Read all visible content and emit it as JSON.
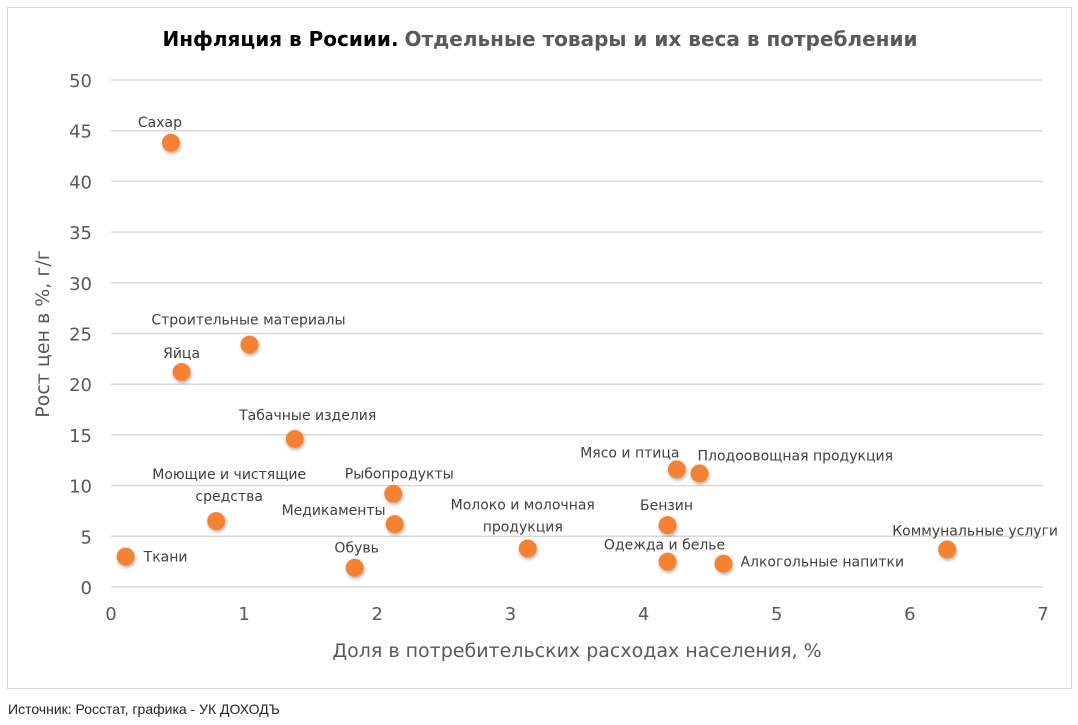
{
  "chart_data": {
    "type": "scatter",
    "title_bold": "Инфляция в Росиии.",
    "title_rest": "Отдельные товары и их веса в потреблении",
    "xlabel": "Доля в потребительских расходах населения, %",
    "ylabel": "Рост цен в %, г/г",
    "xlim": [
      0,
      7
    ],
    "ylim": [
      0,
      50
    ],
    "xticks": [
      "0",
      "1",
      "2",
      "3",
      "4",
      "5",
      "6",
      "7"
    ],
    "yticks": [
      "0",
      "5",
      "10",
      "15",
      "20",
      "25",
      "30",
      "35",
      "40",
      "45",
      "50"
    ],
    "grid": "horizontal",
    "marker_color": "#F58233",
    "points": [
      {
        "label": [
          "Сахар"
        ],
        "x": 0.45,
        "y": 43.8
      },
      {
        "label": [
          "Яйца"
        ],
        "x": 0.53,
        "y": 21.2
      },
      {
        "label": [
          "Строительные материалы"
        ],
        "x": 1.04,
        "y": 23.9
      },
      {
        "label": [
          "Табачные изделия"
        ],
        "x": 1.38,
        "y": 14.6
      },
      {
        "label": [
          "Моющие и чистящие",
          "средства"
        ],
        "x": 0.79,
        "y": 6.5
      },
      {
        "label": [
          "Ткани"
        ],
        "x": 0.11,
        "y": 3.0
      },
      {
        "label": [
          "Обувь"
        ],
        "x": 1.83,
        "y": 1.9
      },
      {
        "label": [
          "Рыбопродукты"
        ],
        "x": 2.12,
        "y": 9.2
      },
      {
        "label": [
          "Медикаменты"
        ],
        "x": 2.13,
        "y": 6.2
      },
      {
        "label": [
          "Молоко и молочная",
          "продукция"
        ],
        "x": 3.13,
        "y": 3.8
      },
      {
        "label": [
          "Мясо и птица"
        ],
        "x": 4.25,
        "y": 11.6
      },
      {
        "label": [
          "Плодоовощная продукция"
        ],
        "x": 4.42,
        "y": 11.2
      },
      {
        "label": [
          "Бензин"
        ],
        "x": 4.18,
        "y": 6.1
      },
      {
        "label": [
          "Одежда и белье"
        ],
        "x": 4.18,
        "y": 2.5
      },
      {
        "label": [
          "Алкогольные напитки"
        ],
        "x": 4.6,
        "y": 2.3
      },
      {
        "label": [
          "Коммунальные услуги"
        ],
        "x": 6.28,
        "y": 3.7
      }
    ]
  },
  "source": "Источник: Росстат, графика - УК ДОХОДЪ"
}
